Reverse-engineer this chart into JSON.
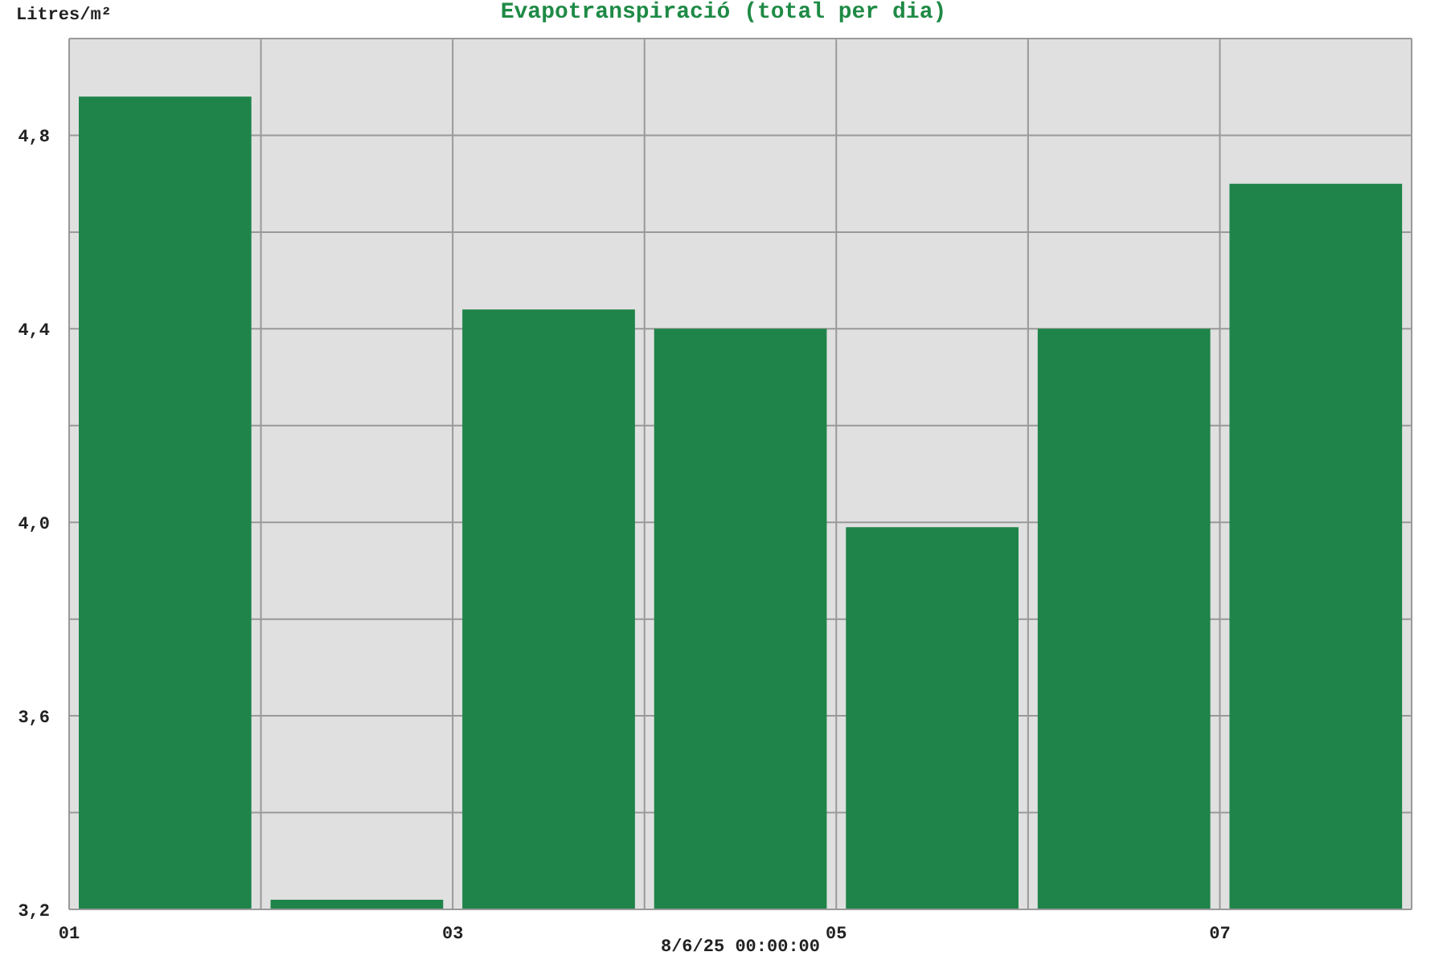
{
  "chart_data": {
    "type": "histogram",
    "title": "Evapotranspiració (total per dia)",
    "xlabel": "8/6/25 00:00:00",
    "ylabel": "Litres/m²",
    "bins": [
      1,
      2,
      3,
      4,
      5,
      6,
      7,
      8
    ],
    "values": [
      4.88,
      3.22,
      4.44,
      4.4,
      3.99,
      4.4,
      4.7
    ],
    "color": "#1f844a",
    "xlim": [
      1,
      8
    ],
    "xticks": [
      {
        "value": 1,
        "label": "01"
      },
      {
        "value": 3,
        "label": "03"
      },
      {
        "value": 5,
        "label": "05"
      },
      {
        "value": 7,
        "label": "07"
      }
    ],
    "ylim": [
      3.2,
      5.0
    ],
    "yticks": [
      {
        "value": 3.2,
        "label": "3,2"
      },
      {
        "value": 3.4,
        "label": null
      },
      {
        "value": 3.6,
        "label": "3,6"
      },
      {
        "value": 3.8,
        "label": null
      },
      {
        "value": 4.0,
        "label": "4,0"
      },
      {
        "value": 4.2,
        "label": null
      },
      {
        "value": 4.4,
        "label": "4,4"
      },
      {
        "value": 4.6,
        "label": null
      },
      {
        "value": 4.8,
        "label": "4,8"
      }
    ],
    "grid": true
  }
}
